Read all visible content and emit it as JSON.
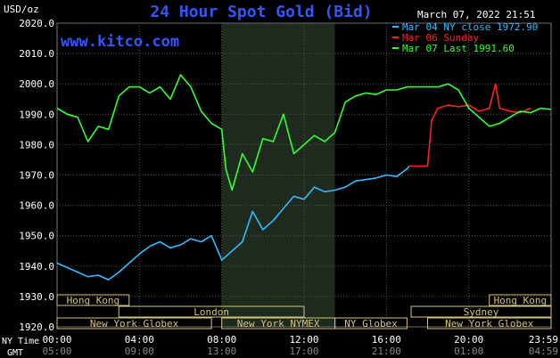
{
  "chart_data": {
    "type": "line",
    "title": "24 Hour Spot Gold (Bid)",
    "watermark": "www.kitco.com",
    "timestamp": "March 07, 2022 21:51",
    "ylabel": "USD/oz",
    "ylim": [
      1920,
      2020
    ],
    "yticks": [
      "2020.0",
      "2010.0",
      "2000.0",
      "1990.0",
      "1980.0",
      "1970.0",
      "1960.0",
      "1950.0",
      "1940.0",
      "1930.0",
      "1920.0"
    ],
    "xlim": [
      0,
      24
    ],
    "x_row_ny": {
      "label": "NY Time",
      "ticks": [
        "00:00",
        "04:00",
        "08:00",
        "12:00",
        "16:00",
        "20:00",
        "23:59"
      ]
    },
    "x_row_gmt": {
      "label": "GMT",
      "ticks": [
        "05:00",
        "09:00",
        "13:00",
        "17:00",
        "21:00",
        "01:00",
        "04:59"
      ]
    },
    "grid": true,
    "legend_position": "top-right",
    "series": [
      {
        "name": "Mar 04 NY close 1972.90",
        "color": "#33bbff",
        "x": [
          0,
          0.5,
          1,
          1.5,
          2,
          2.5,
          3,
          3.5,
          4,
          4.5,
          5,
          5.5,
          6,
          6.5,
          7,
          7.5,
          8,
          8.5,
          9,
          9.5,
          10,
          10.5,
          11,
          11.5,
          12,
          12.5,
          13,
          13.5,
          14,
          14.5,
          15,
          15.5,
          16,
          16.5,
          17,
          17.1
        ],
        "y": [
          1941,
          1939.5,
          1938,
          1936.5,
          1937,
          1935.5,
          1938,
          1941,
          1944,
          1946.5,
          1948,
          1946,
          1947,
          1949,
          1948,
          1950,
          1942,
          1945,
          1948,
          1958,
          1952,
          1955,
          1959,
          1963,
          1962,
          1966,
          1964.5,
          1965,
          1966,
          1968,
          1968.5,
          1969,
          1970,
          1969.5,
          1972,
          1972.9
        ]
      },
      {
        "name": "Mar 06 Sunday",
        "color": "#ff2020",
        "x": [
          17.1,
          17.5,
          18,
          18.2,
          18.5,
          19,
          19.5,
          20,
          20.5,
          21,
          21.3,
          21.5,
          22,
          22.5,
          23
        ],
        "y": [
          1972.9,
          1972.9,
          1973,
          1988,
          1992,
          1993,
          1992.5,
          1993,
          1991,
          1992,
          2000,
          1992,
          1991,
          1990.5,
          1992
        ]
      },
      {
        "name": "Mar 07 Last 1991.60",
        "color": "#33ff33",
        "x": [
          0,
          0.5,
          1,
          1.5,
          2,
          2.5,
          3,
          3.5,
          4,
          4.5,
          5,
          5.5,
          6,
          6.5,
          7,
          7.5,
          8,
          8.2,
          8.5,
          9,
          9.5,
          10,
          10.5,
          11,
          11.5,
          12,
          12.5,
          13,
          13.5,
          14,
          14.5,
          15,
          15.5,
          16,
          16.5,
          17,
          17.5,
          18,
          18.5,
          19,
          19.5,
          20,
          20.5,
          21,
          21.5,
          22,
          22.5,
          23,
          23.5,
          23.99
        ],
        "y": [
          1992,
          1990,
          1989,
          1981,
          1986,
          1985,
          1996,
          1999,
          1999,
          1997,
          1999,
          1995,
          2003,
          1999,
          1991,
          1987,
          1985,
          1972,
          1965,
          1977,
          1971,
          1982,
          1981,
          1990,
          1977,
          1980,
          1983,
          1981,
          1984,
          1994,
          1996,
          1997,
          1996.5,
          1998,
          1998,
          1999,
          1999,
          1999,
          1999,
          2000,
          1998,
          1992,
          1989,
          1986,
          1987,
          1989,
          1991,
          1990.5,
          1992,
          1991.6
        ]
      }
    ],
    "market_sessions": [
      {
        "name": "Hong Kong",
        "row": 1,
        "start": -1,
        "end": 3.5
      },
      {
        "name": "London",
        "row": 2,
        "start": 3.0,
        "end": 12.0
      },
      {
        "name": "New York Globex",
        "row": 3,
        "start": -1,
        "end": 7.5
      },
      {
        "name": "New York NYMEX",
        "row": 3,
        "start": 8.0,
        "end": 13.5
      },
      {
        "name": "NY Globex",
        "row": 3,
        "start": 13.5,
        "end": 17.0
      },
      {
        "name": "Hong Kong",
        "row": 1,
        "start": 21.0,
        "end": 25
      },
      {
        "name": "Sydney",
        "row": 2,
        "start": 17.2,
        "end": 25
      },
      {
        "name": "New York Globex",
        "row": 3,
        "start": 18.0,
        "end": 25
      }
    ],
    "shaded_region": {
      "start": 8.0,
      "end": 13.5
    }
  }
}
